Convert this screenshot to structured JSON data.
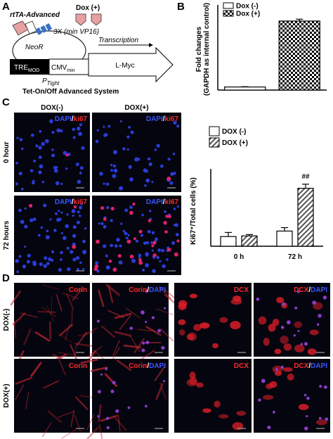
{
  "figure": {
    "panel_a": {
      "label": "A",
      "rtta": "rtTA-Advanced",
      "dox": "Dox (+)",
      "vp16": "3X (min VP16)",
      "neor": "NeoR",
      "transcription": "Transcription",
      "tre": "TRE",
      "tre_sub": "MOD",
      "cmv": "CMV",
      "cmv_sub": "min",
      "gene": "L-Myc",
      "promoter": "P",
      "promoter_sub": "Tight",
      "system": "Tet-On/Off Advanced System"
    },
    "panel_b": {
      "label": "B"
    },
    "panel_c": {
      "label": "C",
      "columns": [
        "DOX(-)",
        "DOX(+)"
      ],
      "rows": [
        "0 hour",
        "72 hours"
      ],
      "dapi": "DAPI",
      "sep": "/",
      "ki67": "ki67"
    },
    "panel_d": {
      "label": "D",
      "rows": [
        "DOX(-)",
        "DOX(+)"
      ],
      "markers": [
        "Corin",
        "DCX"
      ],
      "dapi": "DAPI",
      "sep": "/"
    }
  },
  "chart_data": [
    {
      "type": "bar",
      "y_label": [
        "Fold changes",
        "(GAPDH as internal control)"
      ],
      "ylim": [
        0,
        25
      ],
      "series": [
        {
          "name": "Dox (-)",
          "color": "#ffffff",
          "pattern": "none",
          "values": [
            1.0
          ],
          "errors": [
            0.1
          ]
        },
        {
          "name": "Dox (+)",
          "color": "#000000",
          "pattern": "checker",
          "values": [
            22.5
          ],
          "errors": [
            0.6
          ]
        }
      ]
    },
    {
      "type": "bar",
      "y_label": "Ki67⁺/Total cells (%)",
      "categories": [
        "0 h",
        "72 h"
      ],
      "ylim": [
        0,
        50
      ],
      "annotation": "##",
      "series": [
        {
          "name": "DOX (-)",
          "color": "#ffffff",
          "pattern": "none",
          "values": [
            7,
            11
          ],
          "errors": [
            3,
            2.5
          ]
        },
        {
          "name": "DOX (+)",
          "color": "#000000",
          "pattern": "hatch",
          "values": [
            7.5,
            42
          ],
          "errors": [
            1,
            3
          ]
        }
      ]
    }
  ]
}
